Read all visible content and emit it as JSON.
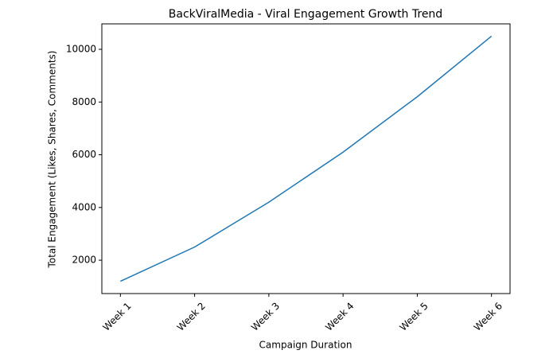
{
  "chart_data": {
    "type": "line",
    "title": "BackViralMedia - Viral Engagement Growth Trend",
    "x_label": "Campaign Duration",
    "y_label": "Total Engagement (Likes, Shares, Comments)",
    "categories": [
      "Week 1",
      "Week 2",
      "Week 3",
      "Week 4",
      "Week 5",
      "Week 6"
    ],
    "values": [
      1200,
      2500,
      4200,
      6100,
      8200,
      10500
    ],
    "color": "#1f77b4",
    "ylim": [
      735,
      10965
    ],
    "yticks": [
      2000,
      4000,
      6000,
      8000,
      10000
    ],
    "grid": false
  }
}
